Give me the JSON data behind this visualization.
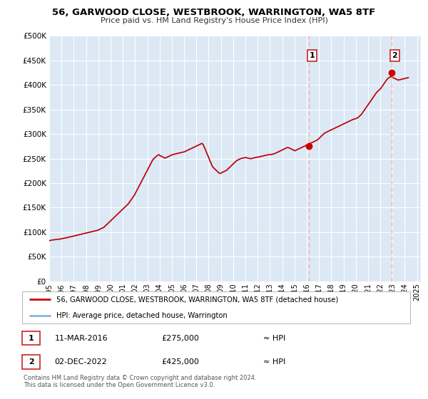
{
  "title": "56, GARWOOD CLOSE, WESTBROOK, WARRINGTON, WA5 8TF",
  "subtitle": "Price paid vs. HM Land Registry's House Price Index (HPI)",
  "bg_color": "#dce9f5",
  "hpi_line_color": "#8ab4e0",
  "price_line_color": "#cc0000",
  "vline_color": "#ffaaaa",
  "ylim": [
    0,
    500000
  ],
  "yticks": [
    0,
    50000,
    100000,
    150000,
    200000,
    250000,
    300000,
    350000,
    400000,
    450000,
    500000
  ],
  "xmin": 1995.0,
  "xmax": 2025.3,
  "xtick_years": [
    1995,
    1996,
    1997,
    1998,
    1999,
    2000,
    2001,
    2002,
    2003,
    2004,
    2005,
    2006,
    2007,
    2008,
    2009,
    2010,
    2011,
    2012,
    2013,
    2014,
    2015,
    2016,
    2017,
    2018,
    2019,
    2020,
    2021,
    2022,
    2023,
    2024,
    2025
  ],
  "sale1_x": 2016.19,
  "sale1_y": 275000,
  "sale1_label": "1",
  "sale1_date": "11-MAR-2016",
  "sale1_price": "£275,000",
  "sale2_x": 2022.92,
  "sale2_y": 425000,
  "sale2_label": "2",
  "sale2_date": "02-DEC-2022",
  "sale2_price": "£425,000",
  "legend_property": "56, GARWOOD CLOSE, WESTBROOK, WARRINGTON, WA5 8TF (detached house)",
  "legend_hpi": "HPI: Average price, detached house, Warrington",
  "footer1": "Contains HM Land Registry data © Crown copyright and database right 2024.",
  "footer2": "This data is licensed under the Open Government Licence v3.0.",
  "hpi_data": [
    [
      1995.04,
      83000
    ],
    [
      1995.12,
      83500
    ],
    [
      1995.21,
      84000
    ],
    [
      1995.29,
      84200
    ],
    [
      1995.37,
      84500
    ],
    [
      1995.46,
      84800
    ],
    [
      1995.54,
      85000
    ],
    [
      1995.62,
      85200
    ],
    [
      1995.71,
      85500
    ],
    [
      1995.79,
      85800
    ],
    [
      1995.87,
      86000
    ],
    [
      1995.96,
      86500
    ],
    [
      1996.04,
      87000
    ],
    [
      1996.12,
      87500
    ],
    [
      1996.21,
      87800
    ],
    [
      1996.29,
      88000
    ],
    [
      1996.37,
      88500
    ],
    [
      1996.46,
      89000
    ],
    [
      1996.54,
      89500
    ],
    [
      1996.62,
      90000
    ],
    [
      1996.71,
      90500
    ],
    [
      1996.79,
      91000
    ],
    [
      1996.87,
      91500
    ],
    [
      1996.96,
      92000
    ],
    [
      1997.04,
      92500
    ],
    [
      1997.12,
      93000
    ],
    [
      1997.21,
      93500
    ],
    [
      1997.29,
      94000
    ],
    [
      1997.37,
      94500
    ],
    [
      1997.46,
      95000
    ],
    [
      1997.54,
      95500
    ],
    [
      1997.62,
      96000
    ],
    [
      1997.71,
      96500
    ],
    [
      1997.79,
      97000
    ],
    [
      1997.87,
      97500
    ],
    [
      1997.96,
      98000
    ],
    [
      1998.04,
      98500
    ],
    [
      1998.12,
      99000
    ],
    [
      1998.21,
      99500
    ],
    [
      1998.29,
      100000
    ],
    [
      1998.37,
      100500
    ],
    [
      1998.46,
      101000
    ],
    [
      1998.54,
      101500
    ],
    [
      1998.62,
      102000
    ],
    [
      1998.71,
      102500
    ],
    [
      1998.79,
      103000
    ],
    [
      1998.87,
      103500
    ],
    [
      1998.96,
      104000
    ],
    [
      1999.04,
      105000
    ],
    [
      1999.12,
      106000
    ],
    [
      1999.21,
      107000
    ],
    [
      1999.29,
      108000
    ],
    [
      1999.37,
      109000
    ],
    [
      1999.46,
      110000
    ],
    [
      1999.54,
      112000
    ],
    [
      1999.62,
      114000
    ],
    [
      1999.71,
      116000
    ],
    [
      1999.79,
      118000
    ],
    [
      1999.87,
      120000
    ],
    [
      1999.96,
      122000
    ],
    [
      2000.04,
      124000
    ],
    [
      2000.12,
      126000
    ],
    [
      2000.21,
      128000
    ],
    [
      2000.29,
      130000
    ],
    [
      2000.37,
      132000
    ],
    [
      2000.46,
      134000
    ],
    [
      2000.54,
      136000
    ],
    [
      2000.62,
      138000
    ],
    [
      2000.71,
      140000
    ],
    [
      2000.79,
      142000
    ],
    [
      2000.87,
      144000
    ],
    [
      2000.96,
      146000
    ],
    [
      2001.04,
      148000
    ],
    [
      2001.12,
      150000
    ],
    [
      2001.21,
      152000
    ],
    [
      2001.29,
      154000
    ],
    [
      2001.37,
      156000
    ],
    [
      2001.46,
      158000
    ],
    [
      2001.54,
      161000
    ],
    [
      2001.62,
      164000
    ],
    [
      2001.71,
      167000
    ],
    [
      2001.79,
      170000
    ],
    [
      2001.87,
      173000
    ],
    [
      2001.96,
      176000
    ],
    [
      2002.04,
      180000
    ],
    [
      2002.12,
      184000
    ],
    [
      2002.21,
      188000
    ],
    [
      2002.29,
      192000
    ],
    [
      2002.37,
      196000
    ],
    [
      2002.46,
      200000
    ],
    [
      2002.54,
      204000
    ],
    [
      2002.62,
      208000
    ],
    [
      2002.71,
      212000
    ],
    [
      2002.79,
      216000
    ],
    [
      2002.87,
      220000
    ],
    [
      2002.96,
      224000
    ],
    [
      2003.04,
      228000
    ],
    [
      2003.12,
      232000
    ],
    [
      2003.21,
      236000
    ],
    [
      2003.29,
      240000
    ],
    [
      2003.37,
      244000
    ],
    [
      2003.46,
      248000
    ],
    [
      2003.54,
      250000
    ],
    [
      2003.62,
      252000
    ],
    [
      2003.71,
      254000
    ],
    [
      2003.79,
      256000
    ],
    [
      2003.87,
      257000
    ],
    [
      2003.96,
      258000
    ],
    [
      2004.04,
      256000
    ],
    [
      2004.12,
      255000
    ],
    [
      2004.21,
      254000
    ],
    [
      2004.29,
      253000
    ],
    [
      2004.37,
      252000
    ],
    [
      2004.46,
      251000
    ],
    [
      2004.54,
      252000
    ],
    [
      2004.62,
      253000
    ],
    [
      2004.71,
      254000
    ],
    [
      2004.79,
      255000
    ],
    [
      2004.87,
      256000
    ],
    [
      2004.96,
      257000
    ],
    [
      2005.04,
      258000
    ],
    [
      2005.12,
      258500
    ],
    [
      2005.21,
      259000
    ],
    [
      2005.29,
      259500
    ],
    [
      2005.37,
      260000
    ],
    [
      2005.46,
      260500
    ],
    [
      2005.54,
      261000
    ],
    [
      2005.62,
      261500
    ],
    [
      2005.71,
      262000
    ],
    [
      2005.79,
      262500
    ],
    [
      2005.87,
      263000
    ],
    [
      2005.96,
      263500
    ],
    [
      2006.04,
      264000
    ],
    [
      2006.12,
      265000
    ],
    [
      2006.21,
      266000
    ],
    [
      2006.29,
      267000
    ],
    [
      2006.37,
      268000
    ],
    [
      2006.46,
      269000
    ],
    [
      2006.54,
      270000
    ],
    [
      2006.62,
      271000
    ],
    [
      2006.71,
      272000
    ],
    [
      2006.79,
      273000
    ],
    [
      2006.87,
      274000
    ],
    [
      2006.96,
      275000
    ],
    [
      2007.04,
      276000
    ],
    [
      2007.12,
      277000
    ],
    [
      2007.21,
      278000
    ],
    [
      2007.29,
      279000
    ],
    [
      2007.37,
      280000
    ],
    [
      2007.46,
      281000
    ],
    [
      2007.54,
      279000
    ],
    [
      2007.62,
      275000
    ],
    [
      2007.71,
      270000
    ],
    [
      2007.79,
      265000
    ],
    [
      2007.87,
      260000
    ],
    [
      2007.96,
      255000
    ],
    [
      2008.04,
      250000
    ],
    [
      2008.12,
      245000
    ],
    [
      2008.21,
      240000
    ],
    [
      2008.29,
      235000
    ],
    [
      2008.37,
      232000
    ],
    [
      2008.46,
      230000
    ],
    [
      2008.54,
      228000
    ],
    [
      2008.62,
      226000
    ],
    [
      2008.71,
      224000
    ],
    [
      2008.79,
      222000
    ],
    [
      2008.87,
      220000
    ],
    [
      2008.96,
      220000
    ],
    [
      2009.04,
      221000
    ],
    [
      2009.12,
      222000
    ],
    [
      2009.21,
      223000
    ],
    [
      2009.29,
      224000
    ],
    [
      2009.37,
      225000
    ],
    [
      2009.46,
      226000
    ],
    [
      2009.54,
      228000
    ],
    [
      2009.62,
      230000
    ],
    [
      2009.71,
      232000
    ],
    [
      2009.79,
      234000
    ],
    [
      2009.87,
      236000
    ],
    [
      2009.96,
      238000
    ],
    [
      2010.04,
      240000
    ],
    [
      2010.12,
      242000
    ],
    [
      2010.21,
      244000
    ],
    [
      2010.29,
      246000
    ],
    [
      2010.37,
      247000
    ],
    [
      2010.46,
      248000
    ],
    [
      2010.54,
      249000
    ],
    [
      2010.62,
      250000
    ],
    [
      2010.71,
      250500
    ],
    [
      2010.79,
      251000
    ],
    [
      2010.87,
      251500
    ],
    [
      2010.96,
      252000
    ],
    [
      2011.04,
      252000
    ],
    [
      2011.12,
      251500
    ],
    [
      2011.21,
      251000
    ],
    [
      2011.29,
      250500
    ],
    [
      2011.37,
      250000
    ],
    [
      2011.46,
      250000
    ],
    [
      2011.54,
      250500
    ],
    [
      2011.62,
      251000
    ],
    [
      2011.71,
      251500
    ],
    [
      2011.79,
      252000
    ],
    [
      2011.87,
      252500
    ],
    [
      2011.96,
      253000
    ],
    [
      2012.04,
      253000
    ],
    [
      2012.12,
      253500
    ],
    [
      2012.21,
      254000
    ],
    [
      2012.29,
      254500
    ],
    [
      2012.37,
      255000
    ],
    [
      2012.46,
      255500
    ],
    [
      2012.54,
      256000
    ],
    [
      2012.62,
      256500
    ],
    [
      2012.71,
      257000
    ],
    [
      2012.79,
      257500
    ],
    [
      2012.87,
      258000
    ],
    [
      2012.96,
      258500
    ],
    [
      2013.04,
      258000
    ],
    [
      2013.12,
      258500
    ],
    [
      2013.21,
      259000
    ],
    [
      2013.29,
      259500
    ],
    [
      2013.37,
      260000
    ],
    [
      2013.46,
      261000
    ],
    [
      2013.54,
      262000
    ],
    [
      2013.62,
      263000
    ],
    [
      2013.71,
      264000
    ],
    [
      2013.79,
      265000
    ],
    [
      2013.87,
      266000
    ],
    [
      2013.96,
      267000
    ],
    [
      2014.04,
      268000
    ],
    [
      2014.12,
      269000
    ],
    [
      2014.21,
      270000
    ],
    [
      2014.29,
      271000
    ],
    [
      2014.37,
      272000
    ],
    [
      2014.46,
      273000
    ],
    [
      2014.54,
      272000
    ],
    [
      2014.62,
      271000
    ],
    [
      2014.71,
      270000
    ],
    [
      2014.79,
      269000
    ],
    [
      2014.87,
      268000
    ],
    [
      2014.96,
      267000
    ],
    [
      2015.04,
      266000
    ],
    [
      2015.12,
      267000
    ],
    [
      2015.21,
      268000
    ],
    [
      2015.29,
      269000
    ],
    [
      2015.37,
      270000
    ],
    [
      2015.46,
      271000
    ],
    [
      2015.54,
      272000
    ],
    [
      2015.62,
      273000
    ],
    [
      2015.71,
      274000
    ],
    [
      2015.79,
      275000
    ],
    [
      2015.87,
      276000
    ],
    [
      2015.96,
      277000
    ],
    [
      2016.04,
      278000
    ],
    [
      2016.12,
      279000
    ],
    [
      2016.21,
      280000
    ],
    [
      2016.29,
      281000
    ],
    [
      2016.37,
      282000
    ],
    [
      2016.46,
      283000
    ],
    [
      2016.54,
      284000
    ],
    [
      2016.62,
      285000
    ],
    [
      2016.71,
      286000
    ],
    [
      2016.79,
      287000
    ],
    [
      2016.87,
      288000
    ],
    [
      2016.96,
      290000
    ],
    [
      2017.04,
      292000
    ],
    [
      2017.12,
      294000
    ],
    [
      2017.21,
      296000
    ],
    [
      2017.29,
      298000
    ],
    [
      2017.37,
      300000
    ],
    [
      2017.46,
      302000
    ],
    [
      2017.54,
      303000
    ],
    [
      2017.62,
      304000
    ],
    [
      2017.71,
      305000
    ],
    [
      2017.79,
      306000
    ],
    [
      2017.87,
      307000
    ],
    [
      2017.96,
      308000
    ],
    [
      2018.04,
      309000
    ],
    [
      2018.12,
      310000
    ],
    [
      2018.21,
      311000
    ],
    [
      2018.29,
      312000
    ],
    [
      2018.37,
      313000
    ],
    [
      2018.46,
      314000
    ],
    [
      2018.54,
      315000
    ],
    [
      2018.62,
      316000
    ],
    [
      2018.71,
      317000
    ],
    [
      2018.79,
      318000
    ],
    [
      2018.87,
      319000
    ],
    [
      2018.96,
      320000
    ],
    [
      2019.04,
      321000
    ],
    [
      2019.12,
      322000
    ],
    [
      2019.21,
      323000
    ],
    [
      2019.29,
      324000
    ],
    [
      2019.37,
      325000
    ],
    [
      2019.46,
      326000
    ],
    [
      2019.54,
      327000
    ],
    [
      2019.62,
      328000
    ],
    [
      2019.71,
      329000
    ],
    [
      2019.79,
      330000
    ],
    [
      2019.87,
      330500
    ],
    [
      2019.96,
      331000
    ],
    [
      2020.04,
      332000
    ],
    [
      2020.12,
      333000
    ],
    [
      2020.21,
      334000
    ],
    [
      2020.29,
      336000
    ],
    [
      2020.37,
      338000
    ],
    [
      2020.46,
      340000
    ],
    [
      2020.54,
      343000
    ],
    [
      2020.62,
      346000
    ],
    [
      2020.71,
      349000
    ],
    [
      2020.79,
      352000
    ],
    [
      2020.87,
      355000
    ],
    [
      2020.96,
      358000
    ],
    [
      2021.04,
      361000
    ],
    [
      2021.12,
      364000
    ],
    [
      2021.21,
      367000
    ],
    [
      2021.29,
      370000
    ],
    [
      2021.37,
      373000
    ],
    [
      2021.46,
      376000
    ],
    [
      2021.54,
      379000
    ],
    [
      2021.62,
      382000
    ],
    [
      2021.71,
      385000
    ],
    [
      2021.79,
      387000
    ],
    [
      2021.87,
      389000
    ],
    [
      2021.96,
      391000
    ],
    [
      2022.04,
      393000
    ],
    [
      2022.12,
      396000
    ],
    [
      2022.21,
      399000
    ],
    [
      2022.29,
      402000
    ],
    [
      2022.37,
      405000
    ],
    [
      2022.46,
      408000
    ],
    [
      2022.54,
      411000
    ],
    [
      2022.62,
      413000
    ],
    [
      2022.71,
      415000
    ],
    [
      2022.79,
      416000
    ],
    [
      2022.87,
      416500
    ],
    [
      2022.96,
      416000
    ],
    [
      2023.04,
      415000
    ],
    [
      2023.12,
      414000
    ],
    [
      2023.21,
      413000
    ],
    [
      2023.29,
      412000
    ],
    [
      2023.37,
      411000
    ],
    [
      2023.46,
      410000
    ],
    [
      2023.54,
      410500
    ],
    [
      2023.62,
      411000
    ],
    [
      2023.71,
      411500
    ],
    [
      2023.79,
      412000
    ],
    [
      2023.87,
      412500
    ],
    [
      2023.96,
      413000
    ],
    [
      2024.04,
      413500
    ],
    [
      2024.12,
      414000
    ],
    [
      2024.21,
      414500
    ],
    [
      2024.29,
      415000
    ]
  ]
}
